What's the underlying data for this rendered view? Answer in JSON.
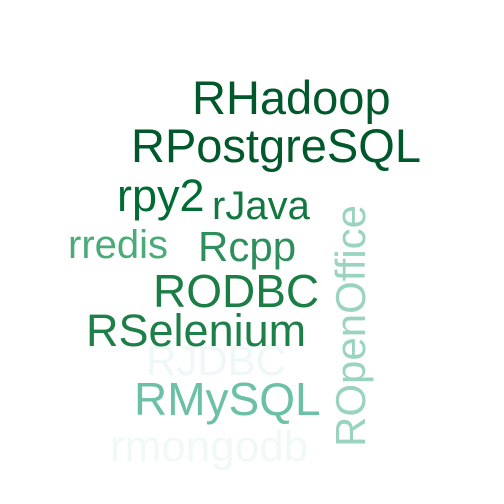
{
  "word_cloud": {
    "words": [
      {
        "text": "RHadoop",
        "color": "#00582b",
        "orientation": "horizontal"
      },
      {
        "text": "RPostgreSQL",
        "color": "#00582b",
        "orientation": "horizontal"
      },
      {
        "text": "rpy2",
        "color": "#006b33",
        "orientation": "horizontal"
      },
      {
        "text": "rJava",
        "color": "#11783f",
        "orientation": "horizontal"
      },
      {
        "text": "rredis",
        "color": "#4aab78",
        "orientation": "horizontal"
      },
      {
        "text": "Rcpp",
        "color": "#2f8f5c",
        "orientation": "horizontal"
      },
      {
        "text": "RODBC",
        "color": "#1a7e45",
        "orientation": "horizontal"
      },
      {
        "text": "RSelenium",
        "color": "#1e8049",
        "orientation": "horizontal"
      },
      {
        "text": "RJDBC",
        "color": "#eef8f7",
        "orientation": "horizontal"
      },
      {
        "text": "RMySQL",
        "color": "#6cc0a6",
        "orientation": "horizontal"
      },
      {
        "text": "rmongodb",
        "color": "#f1f9f7",
        "orientation": "horizontal"
      },
      {
        "text": "ROpenOffice",
        "color": "#9ad3c0",
        "orientation": "vertical"
      }
    ]
  }
}
